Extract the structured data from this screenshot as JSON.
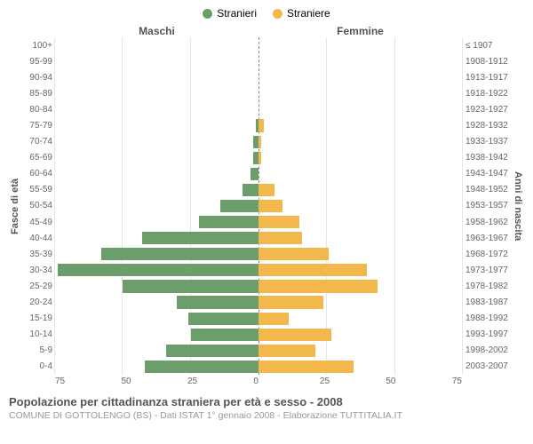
{
  "legend": {
    "male_label": "Stranieri",
    "female_label": "Straniere"
  },
  "headers": {
    "left": "Maschi",
    "right": "Femmine"
  },
  "axes": {
    "y_left_title": "Fasce di età",
    "y_right_title": "Anni di nascita",
    "x_max": 75,
    "x_ticks_left": [
      "75",
      "50",
      "25",
      "0"
    ],
    "x_ticks_right": [
      "0",
      "25",
      "50",
      "75"
    ]
  },
  "colors": {
    "male": "#6b9e6b",
    "female": "#f2b84b",
    "grid": "#e5e5e5",
    "background": "#ffffff"
  },
  "rows": [
    {
      "age": "100+",
      "birth": "≤ 1907",
      "m": 0,
      "f": 0
    },
    {
      "age": "95-99",
      "birth": "1908-1912",
      "m": 0,
      "f": 0
    },
    {
      "age": "90-94",
      "birth": "1913-1917",
      "m": 0,
      "f": 0
    },
    {
      "age": "85-89",
      "birth": "1918-1922",
      "m": 0,
      "f": 0
    },
    {
      "age": "80-84",
      "birth": "1923-1927",
      "m": 0,
      "f": 0
    },
    {
      "age": "75-79",
      "birth": "1928-1932",
      "m": 1,
      "f": 2
    },
    {
      "age": "70-74",
      "birth": "1933-1937",
      "m": 2,
      "f": 1
    },
    {
      "age": "65-69",
      "birth": "1938-1942",
      "m": 2,
      "f": 1
    },
    {
      "age": "60-64",
      "birth": "1943-1947",
      "m": 3,
      "f": 0
    },
    {
      "age": "55-59",
      "birth": "1948-1952",
      "m": 6,
      "f": 6
    },
    {
      "age": "50-54",
      "birth": "1953-1957",
      "m": 14,
      "f": 9
    },
    {
      "age": "45-49",
      "birth": "1958-1962",
      "m": 22,
      "f": 15
    },
    {
      "age": "40-44",
      "birth": "1963-1967",
      "m": 43,
      "f": 16
    },
    {
      "age": "35-39",
      "birth": "1968-1972",
      "m": 58,
      "f": 26
    },
    {
      "age": "30-34",
      "birth": "1973-1977",
      "m": 74,
      "f": 40
    },
    {
      "age": "25-29",
      "birth": "1978-1982",
      "m": 50,
      "f": 44
    },
    {
      "age": "20-24",
      "birth": "1983-1987",
      "m": 30,
      "f": 24
    },
    {
      "age": "15-19",
      "birth": "1988-1992",
      "m": 26,
      "f": 11
    },
    {
      "age": "10-14",
      "birth": "1993-1997",
      "m": 25,
      "f": 27
    },
    {
      "age": "5-9",
      "birth": "1998-2002",
      "m": 34,
      "f": 21
    },
    {
      "age": "0-4",
      "birth": "2003-2007",
      "m": 42,
      "f": 35
    }
  ],
  "footer": {
    "title": "Popolazione per cittadinanza straniera per età e sesso - 2008",
    "subtitle": "COMUNE DI GOTTOLENGO (BS) - Dati ISTAT 1° gennaio 2008 - Elaborazione TUTTITALIA.IT"
  }
}
